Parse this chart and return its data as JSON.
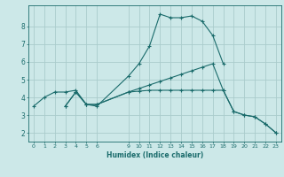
{
  "background_color": "#cce8e8",
  "grid_color": "#aacccc",
  "line_color": "#1a6b6b",
  "xlabel": "Humidex (Indice chaleur)",
  "xlim": [
    -0.5,
    23.5
  ],
  "ylim": [
    1.5,
    9.2
  ],
  "xticks": [
    0,
    1,
    2,
    3,
    4,
    5,
    6,
    9,
    10,
    11,
    12,
    13,
    14,
    15,
    16,
    17,
    18,
    19,
    20,
    21,
    22,
    23
  ],
  "yticks": [
    2,
    3,
    4,
    5,
    6,
    7,
    8
  ],
  "curve1_x": [
    0,
    1,
    2,
    3,
    4,
    5,
    6,
    9,
    10,
    11,
    12,
    13,
    14,
    15,
    16,
    17,
    18
  ],
  "curve1_y": [
    3.5,
    4.0,
    4.3,
    4.3,
    4.4,
    3.6,
    3.5,
    5.2,
    5.9,
    6.9,
    8.7,
    8.5,
    8.5,
    8.6,
    8.3,
    7.5,
    5.9
  ],
  "curve2_x": [
    3,
    4,
    5,
    6,
    9,
    10,
    11,
    12,
    13,
    14,
    15,
    16,
    17,
    18,
    19,
    20,
    21,
    22,
    23
  ],
  "curve2_y": [
    3.5,
    4.3,
    3.6,
    3.6,
    4.3,
    4.5,
    4.7,
    4.9,
    5.1,
    5.3,
    5.5,
    5.7,
    5.9,
    4.4,
    3.2,
    3.0,
    2.9,
    2.5,
    2.0
  ],
  "curve3_x": [
    3,
    4,
    5,
    6,
    9,
    10,
    11,
    12,
    13,
    14,
    15,
    16,
    17,
    18,
    19,
    20,
    21,
    22,
    23
  ],
  "curve3_y": [
    3.5,
    4.3,
    3.6,
    3.6,
    4.3,
    4.35,
    4.4,
    4.4,
    4.4,
    4.4,
    4.4,
    4.4,
    4.4,
    4.4,
    3.2,
    3.0,
    2.9,
    2.5,
    2.0
  ]
}
